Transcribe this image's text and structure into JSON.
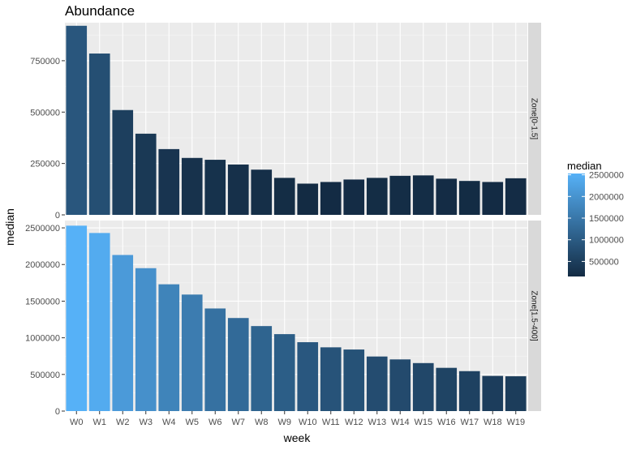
{
  "chart_data": {
    "type": "bar",
    "title": "Abundance",
    "xlabel": "week",
    "ylabel": "median",
    "categories": [
      "W0",
      "W1",
      "W2",
      "W3",
      "W4",
      "W5",
      "W6",
      "W7",
      "W8",
      "W9",
      "W10",
      "W11",
      "W12",
      "W13",
      "W14",
      "W15",
      "W16",
      "W17",
      "W18",
      "W19"
    ],
    "facets": [
      {
        "label": "Zone[0-1.5]",
        "values": [
          920000,
          785000,
          510000,
          395000,
          320000,
          277000,
          268000,
          245000,
          220000,
          180000,
          152000,
          160000,
          172000,
          180000,
          190000,
          192000,
          176000,
          165000,
          160000,
          178000
        ],
        "ylim": [
          0,
          935000
        ],
        "yticks": [
          0,
          250000,
          500000,
          750000
        ],
        "ytick_labels": [
          "0",
          "250000",
          "500000",
          "750000"
        ]
      },
      {
        "label": "Zone[1.5-400]",
        "values": [
          2530000,
          2430000,
          2130000,
          1950000,
          1730000,
          1590000,
          1400000,
          1270000,
          1160000,
          1050000,
          940000,
          870000,
          840000,
          745000,
          705000,
          655000,
          590000,
          545000,
          480000,
          475000
        ],
        "ylim": [
          0,
          2600000
        ],
        "yticks": [
          0,
          500000,
          1000000,
          1500000,
          2000000,
          2500000
        ],
        "ytick_labels": [
          "0",
          "500000",
          "1000000",
          "1500000",
          "2000000",
          "2500000"
        ]
      }
    ],
    "legend": {
      "title": "median",
      "position": "right",
      "min": 152000,
      "max": 2530000,
      "ticks": [
        500000,
        1000000,
        1500000,
        2000000,
        2500000
      ],
      "tick_labels": [
        "500000",
        "1000000",
        "1500000",
        "2000000",
        "2500000"
      ],
      "color_low": "#132B43",
      "color_high": "#56B1F7"
    },
    "grid": true,
    "panel_background": "#EBEBEB",
    "strip_background": "#D9D9D9"
  }
}
